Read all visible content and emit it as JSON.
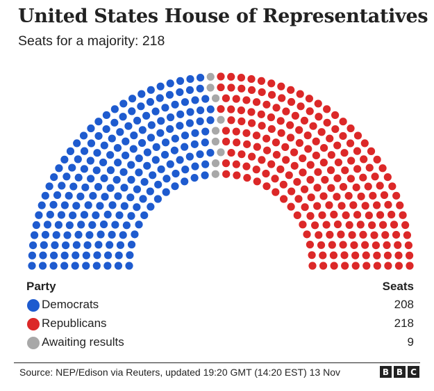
{
  "chart_data": {
    "type": "parliament",
    "title": "United States House of Representatives",
    "subtitle": "Seats for a majority: 218",
    "total_seats": 435,
    "legend_headers": {
      "party": "Party",
      "seats": "Seats"
    },
    "series": [
      {
        "name": "Democrats",
        "seats": 208,
        "color": "#1e5bcf"
      },
      {
        "name": "Awaiting results",
        "seats": 9,
        "color": "#a8a8a8"
      },
      {
        "name": "Republicans",
        "seats": 218,
        "color": "#dc2828"
      }
    ],
    "legend_order": [
      "Democrats",
      "Republicans",
      "Awaiting results"
    ],
    "source": "Source: NEP/Edison via Reuters, updated 19:20 GMT (14:20 EST) 13 Nov",
    "logo": [
      "B",
      "B",
      "C"
    ]
  }
}
